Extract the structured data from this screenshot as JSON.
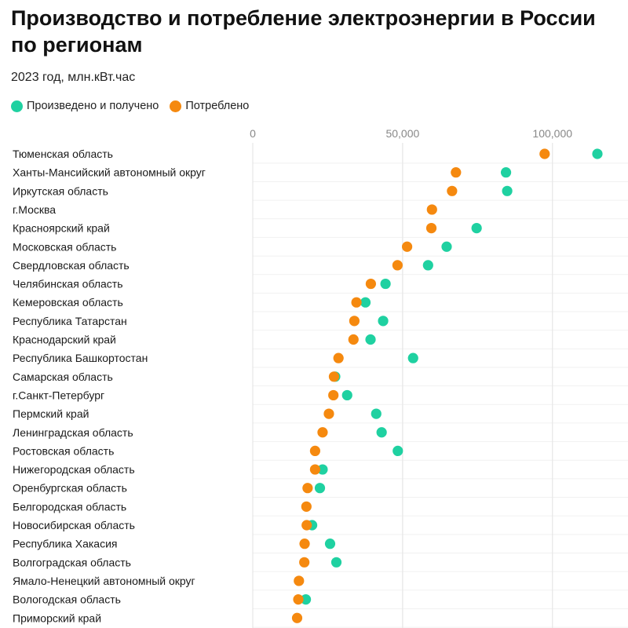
{
  "title": "Производство и потребление электроэнергии в России по регионам",
  "subtitle": "2023 год, млн.кВт.час",
  "colors": {
    "produced": "#1fd1a1",
    "consumed": "#f5890f",
    "grid": "#e6e6e6"
  },
  "legend": [
    {
      "label": "Произведено и получено",
      "color": "#1fd1a1"
    },
    {
      "label": "Потреблено",
      "color": "#f5890f"
    }
  ],
  "chart_data": {
    "type": "scatter",
    "title": "Производство и потребление электроэнергии в России по регионам",
    "subtitle": "2023 год, млн.кВт.час",
    "x_ticks": [
      0,
      50000,
      100000
    ],
    "x_tick_labels": [
      "0",
      "50,000",
      "100,000"
    ],
    "xlim": [
      0,
      118000
    ],
    "grid": true,
    "legend_position": "top-left",
    "categories": [
      "Тюменская область",
      "Ханты-Мансийский автономный округ",
      "Иркутская область",
      "г.Москва",
      "Красноярский край",
      "Московская область",
      "Свердловская область",
      "Челябинская область",
      "Кемеровская область",
      "Республика Татарстан",
      "Краснодарский край",
      "Республика Башкортостан",
      "Самарская область",
      "г.Санкт-Петербург",
      "Пермский край",
      "Ленинградская область",
      "Ростовская область",
      "Нижегородская область",
      "Оренбургская область",
      "Белгородская область",
      "Новосибирская область",
      "Республика Хакасия",
      "Волгоградская область",
      "Ямало-Ненецкий автономный округ",
      "Вологодская область",
      "Приморский край"
    ],
    "series": [
      {
        "name": "Произведено и получено",
        "color": "#1fd1a1",
        "values": [
          115000,
          84500,
          84900,
          null,
          74700,
          64700,
          58500,
          44300,
          37600,
          43500,
          39300,
          53500,
          27500,
          31500,
          41200,
          43000,
          48400,
          23300,
          22400,
          null,
          19800,
          25800,
          27900,
          null,
          17700,
          null
        ]
      },
      {
        "name": "Потреблено",
        "color": "#f5890f",
        "values": [
          97400,
          67800,
          66500,
          59800,
          59600,
          51500,
          48300,
          39400,
          34600,
          33900,
          33600,
          28600,
          27100,
          26900,
          25400,
          23300,
          20800,
          20800,
          18300,
          17900,
          18000,
          17300,
          17200,
          15400,
          15200,
          14800
        ]
      }
    ]
  }
}
